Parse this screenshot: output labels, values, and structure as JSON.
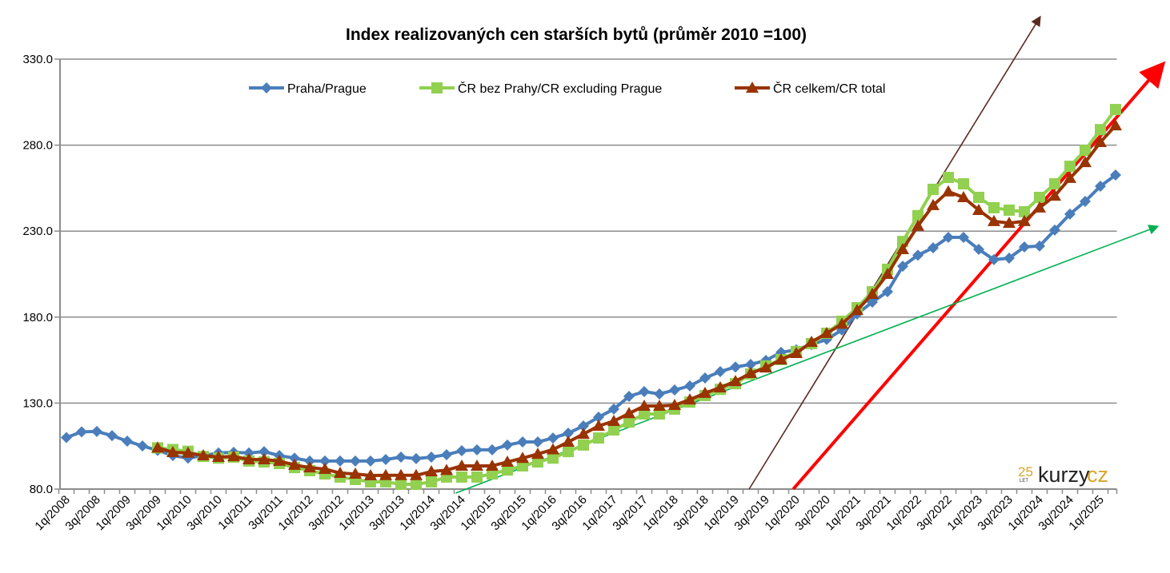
{
  "chart_data": {
    "type": "line",
    "title": "Index realizovaných cen starších bytů (průměr 2010 =100)",
    "xlabel": "",
    "ylabel": "",
    "ylim": [
      80,
      330
    ],
    "yticks": [
      "80.0",
      "130.0",
      "180.0",
      "230.0",
      "280.0",
      "330.0"
    ],
    "ytick_values": [
      80,
      130,
      180,
      230,
      280,
      330
    ],
    "grid": true,
    "legend_position": "top",
    "first_quarter": "2008Q1",
    "x_tick_labels": [
      "1q/2008",
      "3q/2008",
      "1q/2009",
      "3q/2009",
      "1q/2010",
      "3q/2010",
      "1q/2011",
      "3q/2011",
      "1q/2012",
      "3q/2012",
      "1q/2013",
      "3q/2013",
      "1q/2014",
      "3q/2014",
      "1q/2015",
      "3q/2015",
      "1q/2016",
      "3q/2016",
      "1q/2017",
      "3q/2017",
      "1q/2018",
      "3q/2018",
      "1q/2019",
      "3q/2019",
      "1q/2020",
      "3q/2020",
      "1q/2021",
      "3q/2021",
      "1q/2022",
      "3q/2022",
      "1q/2023",
      "3q/2023",
      "1q/2024",
      "3q/2024",
      "1q/2025"
    ],
    "series": [
      {
        "name": "Praha/Prague",
        "color": "#4a7ebb",
        "marker": "diamond",
        "start_index": 0,
        "values": [
          110,
          113.3,
          113.5,
          111.1,
          107.9,
          105.1,
          102.5,
          99.5,
          98,
          99.5,
          101,
          101.4,
          101,
          101.8,
          99.5,
          98,
          96.3,
          96.3,
          96.3,
          96.3,
          96.3,
          97.2,
          98.6,
          97.7,
          98.6,
          100,
          102.3,
          102.8,
          102.8,
          105.6,
          107.4,
          107.4,
          109.7,
          112.5,
          116.7,
          121.8,
          126.5,
          133.9,
          136.7,
          135.3,
          137.6,
          140,
          144.6,
          148.3,
          151,
          152.5,
          154.8,
          159.5,
          161,
          164,
          167,
          172.5,
          181.8,
          188.7,
          194.8,
          209.6,
          216,
          220.3,
          226.4,
          226.4,
          219.4,
          213.4,
          214.3,
          220.8,
          221.3,
          230.6,
          239.9,
          247.3,
          256.1,
          262.6
        ]
      },
      {
        "name": "ČR bez Prahy/CR excluding Prague",
        "color": "#92d050",
        "marker": "square",
        "start_index": 6,
        "values": [
          104,
          103,
          102,
          99,
          98,
          98.6,
          96.3,
          95.8,
          94.9,
          92.5,
          90.7,
          88.8,
          87,
          85.6,
          84.2,
          84.2,
          82.8,
          82.8,
          84.2,
          87,
          87,
          87,
          88.8,
          91.1,
          93.5,
          95.8,
          98,
          101.8,
          105.6,
          109.7,
          114.4,
          119,
          123.7,
          123.7,
          126.5,
          130.6,
          134.4,
          138,
          141.3,
          146.9,
          151.6,
          155.3,
          160,
          164.6,
          170.6,
          177.6,
          185.5,
          194.8,
          207.8,
          224,
          239,
          254.3,
          261.2,
          257.5,
          249.6,
          243.6,
          242.2,
          241.3,
          249.6,
          257.5,
          267.7,
          277,
          289,
          300.7
        ]
      },
      {
        "name": "ČR celkem/CR total",
        "color": "#993300",
        "marker": "triangle",
        "start_index": 6,
        "values": [
          104,
          101.4,
          101,
          99.5,
          98.6,
          99,
          97.2,
          97.2,
          96.3,
          94,
          92.5,
          91.6,
          89.3,
          88.8,
          87.9,
          88,
          88,
          88,
          90.2,
          91,
          93.5,
          93.5,
          93.5,
          95.8,
          98,
          100.4,
          103,
          107.4,
          112,
          116.7,
          119.5,
          124,
          128.3,
          128.3,
          128.8,
          132,
          135.8,
          139,
          142.7,
          147.4,
          150.6,
          155.3,
          159,
          165.5,
          170.6,
          176,
          184,
          193.4,
          205,
          219.4,
          233,
          245,
          253,
          249.6,
          242.2,
          235.7,
          234.7,
          235.7,
          243.6,
          250.5,
          260.8,
          270,
          281.7,
          291.4
        ]
      }
    ],
    "annotations": [
      {
        "type": "arrow",
        "color": "#5a2a1e",
        "from": [
          44.9,
          80
        ],
        "to": [
          64.0,
          354
        ]
      },
      {
        "type": "arrow",
        "color": "#ff0000",
        "from": [
          47.8,
          80
        ],
        "to": [
          72.0,
          326
        ]
      },
      {
        "type": "arrow",
        "color": "#00b050",
        "from": [
          25.6,
          77.7
        ],
        "to": [
          71.7,
          232.5
        ]
      }
    ]
  },
  "logo": {
    "number": "25",
    "sub": "LET",
    "text1": "kurzy",
    "text2": "cz"
  }
}
